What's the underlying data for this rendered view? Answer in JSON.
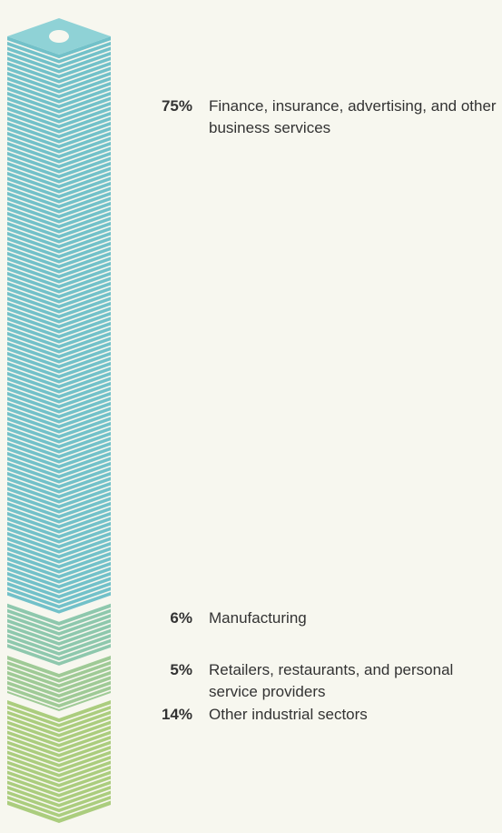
{
  "chart_data": {
    "type": "stacked-column",
    "categories": [
      "Finance, insurance, advertising, and other business services",
      "Manufacturing",
      "Retailers, restaurants, and personal service providers",
      "Other industrial sectors"
    ],
    "values": [
      75,
      6,
      5,
      14
    ],
    "value_labels": [
      "75%",
      "6%",
      "5%",
      "14%"
    ],
    "colors": [
      "#72c1c9",
      "#8ec8ad",
      "#9fca96",
      "#abcd7e"
    ]
  }
}
